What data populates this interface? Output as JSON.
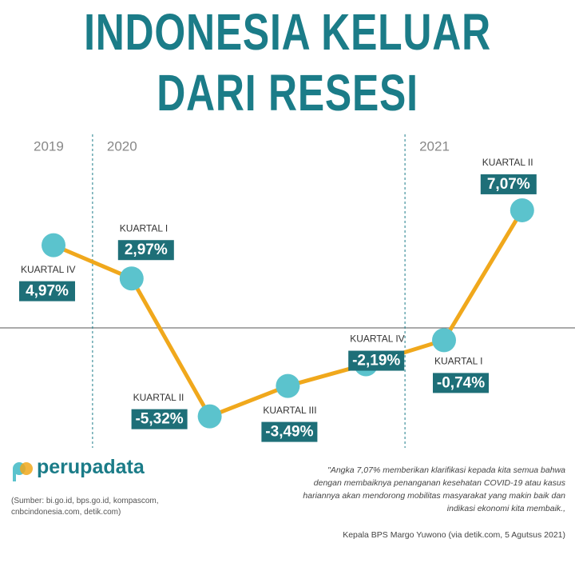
{
  "chart_data": {
    "type": "line",
    "title": "INDONESIA KELUAR DARI RESESI",
    "groups": [
      "2019",
      "2020",
      "2020",
      "2020",
      "2020",
      "2021",
      "2021"
    ],
    "categories": [
      "KUARTAL IV",
      "KUARTAL I",
      "KUARTAL II",
      "KUARTAL III",
      "KUARTAL IV",
      "KUARTAL I",
      "KUARTAL II"
    ],
    "values": [
      4.97,
      2.97,
      -5.32,
      -3.49,
      -2.19,
      -0.74,
      7.07
    ],
    "value_labels": [
      "4,97%",
      "2,97%",
      "-5,32%",
      "-3,49%",
      "-2,19%",
      "-0,74%",
      "7,07%"
    ],
    "color": "#f0a81c",
    "marker_color": "#5bc3cd"
  },
  "brand": "perupadata",
  "source": "(Sumber: bi.go.id, bps.go.id, kompascom, cnbcindonesia.com, detik.com)",
  "quote": "\"Angka 7,07% memberikan klarifikasi kepada kita semua bahwa dengan membaiknya penanganan kesehatan COVID-19 atau kasus hariannya akan mendorong mobilitas masyarakat yang makin baik dan indikasi ekonomi kita membaik.,",
  "attribution": "Kepala BPS Margo Yuwono (via detik.com, 5 Agutsus 2021)"
}
